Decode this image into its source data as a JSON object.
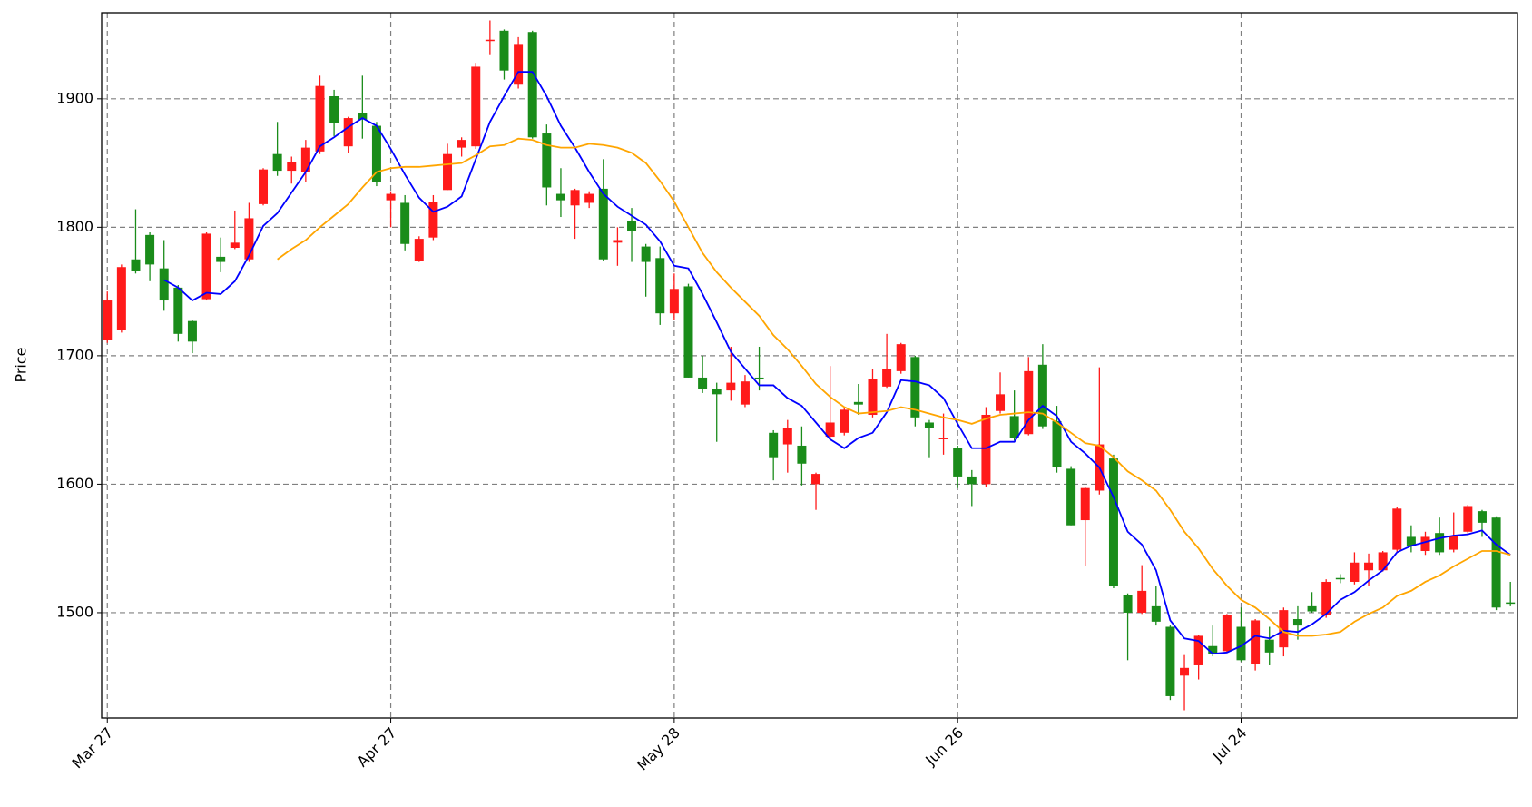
{
  "chart_data": {
    "type": "candlestick",
    "y_label": "Price",
    "x": [
      0,
      1,
      2,
      3,
      4,
      5,
      6,
      7,
      8,
      9,
      10,
      11,
      12,
      13,
      14,
      15,
      16,
      17,
      18,
      19,
      20,
      21,
      22,
      23,
      24,
      25,
      26,
      27,
      28,
      29,
      30,
      31,
      32,
      33,
      34,
      35,
      36,
      37,
      38,
      39,
      40,
      41,
      42,
      43,
      44,
      45,
      46,
      47,
      48,
      49,
      50,
      51,
      52,
      53,
      54,
      55,
      56,
      57,
      58,
      59,
      60,
      61,
      62,
      63,
      64,
      65,
      66,
      67,
      68,
      69,
      70,
      71,
      72,
      73,
      74,
      75,
      76,
      77,
      78,
      79,
      80,
      81,
      82,
      83,
      84,
      85,
      86,
      87,
      88,
      89,
      90,
      91,
      92,
      93,
      94,
      95,
      96,
      97,
      98,
      99
    ],
    "open": [
      1712,
      1720,
      1775,
      1794,
      1768,
      1753,
      1727,
      1744,
      1777,
      1784,
      1775,
      1818,
      1857,
      1844,
      1843,
      1859,
      1902,
      1863,
      1889,
      1879,
      1821,
      1819,
      1774,
      1792,
      1829,
      1862,
      1863,
      1945,
      1953,
      1911,
      1952,
      1873,
      1826,
      1817,
      1819,
      1830,
      1788,
      1805,
      1785,
      1776,
      1733,
      1754,
      1683,
      1674,
      1673,
      1662,
      1683,
      1640,
      1631,
      1630,
      1600,
      1637,
      1640,
      1664,
      1654,
      1676,
      1688,
      1699,
      1648,
      1635,
      1628,
      1606,
      1600,
      1657,
      1653,
      1639,
      1693,
      1649,
      1612,
      1572,
      1595,
      1620,
      1514,
      1500,
      1505,
      1489,
      1451,
      1459,
      1474,
      1470,
      1489,
      1460,
      1479,
      1473,
      1495,
      1505,
      1498,
      1527,
      1524,
      1533,
      1533,
      1549,
      1559,
      1548,
      1562,
      1549,
      1563,
      1579,
      1574,
      1508
    ],
    "high": [
      1750,
      1771,
      1814,
      1796,
      1790,
      1755,
      1728,
      1796,
      1792,
      1813,
      1819,
      1846,
      1882,
      1855,
      1868,
      1918,
      1907,
      1886,
      1918,
      1882,
      1828,
      1825,
      1793,
      1825,
      1865,
      1870,
      1928,
      1961,
      1954,
      1948,
      1953,
      1880,
      1846,
      1830,
      1828,
      1853,
      1800,
      1815,
      1787,
      1785,
      1764,
      1756,
      1700,
      1679,
      1707,
      1685,
      1707,
      1642,
      1650,
      1645,
      1609,
      1692,
      1660,
      1678,
      1690,
      1717,
      1710,
      1700,
      1650,
      1655,
      1630,
      1611,
      1660,
      1687,
      1673,
      1699,
      1709,
      1661,
      1614,
      1598,
      1691,
      1623,
      1515,
      1537,
      1521,
      1490,
      1467,
      1483,
      1490,
      1499,
      1504,
      1495,
      1489,
      1504,
      1505,
      1516,
      1526,
      1530,
      1547,
      1546,
      1548,
      1582,
      1568,
      1563,
      1574,
      1578,
      1584,
      1580,
      1575,
      1524
    ],
    "low": [
      1710,
      1718,
      1764,
      1758,
      1735,
      1711,
      1702,
      1743,
      1765,
      1783,
      1773,
      1817,
      1840,
      1834,
      1835,
      1857,
      1871,
      1858,
      1869,
      1832,
      1800,
      1782,
      1773,
      1790,
      1829,
      1855,
      1861,
      1934,
      1915,
      1908,
      1869,
      1817,
      1808,
      1791,
      1815,
      1774,
      1770,
      1773,
      1746,
      1724,
      1728,
      1683,
      1671,
      1633,
      1665,
      1660,
      1673,
      1603,
      1609,
      1599,
      1580,
      1635,
      1638,
      1654,
      1652,
      1675,
      1686,
      1645,
      1621,
      1623,
      1597,
      1583,
      1598,
      1655,
      1634,
      1638,
      1643,
      1609,
      1568,
      1536,
      1592,
      1519,
      1463,
      1499,
      1490,
      1432,
      1424,
      1448,
      1466,
      1469,
      1462,
      1455,
      1459,
      1466,
      1479,
      1500,
      1496,
      1523,
      1522,
      1521,
      1532,
      1547,
      1547,
      1545,
      1545,
      1547,
      1561,
      1559,
      1502,
      1505
    ],
    "close": [
      1743,
      1769,
      1766,
      1771,
      1743,
      1717,
      1711,
      1795,
      1773,
      1788,
      1807,
      1845,
      1844,
      1851,
      1862,
      1910,
      1881,
      1885,
      1884,
      1835,
      1826,
      1787,
      1791,
      1820,
      1857,
      1868,
      1925,
      1946,
      1922,
      1942,
      1870,
      1831,
      1821,
      1829,
      1826,
      1775,
      1790,
      1797,
      1773,
      1733,
      1752,
      1683,
      1674,
      1670,
      1679,
      1680,
      1682,
      1621,
      1644,
      1616,
      1608,
      1648,
      1658,
      1662,
      1682,
      1690,
      1709,
      1652,
      1644,
      1636,
      1606,
      1600,
      1654,
      1670,
      1636,
      1688,
      1645,
      1613,
      1568,
      1597,
      1631,
      1521,
      1500,
      1517,
      1493,
      1435,
      1457,
      1482,
      1468,
      1498,
      1463,
      1494,
      1469,
      1502,
      1490,
      1501,
      1524,
      1526,
      1539,
      1539,
      1547,
      1581,
      1552,
      1559,
      1547,
      1560,
      1583,
      1570,
      1504,
      1507
    ],
    "up_color": "#ff1a1a",
    "down_color": "#1a8c1a",
    "lines": [
      {
        "color": "#0000ff",
        "values": [
          null,
          null,
          null,
          null,
          1759,
          1753,
          1743,
          1749,
          1748,
          1758,
          1778,
          1801,
          1811,
          1827,
          1843,
          1863,
          1870,
          1878,
          1885,
          1879,
          1861,
          1841,
          1823,
          1812,
          1816,
          1824,
          1853,
          1882,
          1902,
          1921,
          1921,
          1902,
          1879,
          1862,
          1843,
          1826,
          1816,
          1809,
          1802,
          1789,
          1770,
          1768,
          1748,
          1726,
          1703,
          1690,
          1677,
          1677,
          1667,
          1661,
          1648,
          1635,
          1628,
          1636,
          1640,
          1656,
          1681,
          1680,
          1677,
          1667,
          1647,
          1628,
          1628,
          1633,
          1633,
          1650,
          1661,
          1653,
          1633,
          1624,
          1613,
          1590,
          1563,
          1553,
          1533,
          1494,
          1480,
          1478,
          1468,
          1469,
          1474,
          1482,
          1480,
          1486,
          1485,
          1491,
          1499,
          1510,
          1516,
          1525,
          1533,
          1547,
          1552,
          1555,
          1558,
          1560,
          1561,
          1564,
          1553,
          1545
        ]
      },
      {
        "color": "#ffa500",
        "values": [
          null,
          null,
          null,
          null,
          null,
          null,
          null,
          null,
          null,
          null,
          null,
          null,
          1775,
          1783,
          1790,
          1800,
          1809,
          1818,
          1831,
          1843,
          1846,
          1847,
          1847,
          1848,
          1849,
          1850,
          1856,
          1863,
          1864,
          1869,
          1868,
          1864,
          1862,
          1862,
          1865,
          1864,
          1862,
          1858,
          1850,
          1836,
          1820,
          1800,
          1780,
          1765,
          1753,
          1742,
          1731,
          1716,
          1705,
          1692,
          1678,
          1668,
          1660,
          1655,
          1656,
          1657,
          1660,
          1658,
          1655,
          1652,
          1650,
          1647,
          1651,
          1654,
          1655,
          1656,
          1655,
          1648,
          1640,
          1632,
          1630,
          1621,
          1610,
          1603,
          1595,
          1580,
          1563,
          1550,
          1534,
          1521,
          1510,
          1504,
          1495,
          1485,
          1482,
          1482,
          1483,
          1485,
          1493,
          1499,
          1504,
          1513,
          1517,
          1524,
          1529,
          1536,
          1542,
          1548,
          1548,
          1545
        ]
      }
    ],
    "xlim": [
      -0.4,
      99.5
    ],
    "xticks": [
      {
        "value": 0,
        "label": "Mar 27"
      },
      {
        "value": 20,
        "label": "Apr 27"
      },
      {
        "value": 40,
        "label": "May 28"
      },
      {
        "value": 60,
        "label": "Jun 26"
      },
      {
        "value": 80,
        "label": "Jul 24"
      }
    ],
    "ylim": [
      1418,
      1967
    ],
    "yticks": [
      1500,
      1600,
      1700,
      1800,
      1900
    ],
    "grid": true
  }
}
